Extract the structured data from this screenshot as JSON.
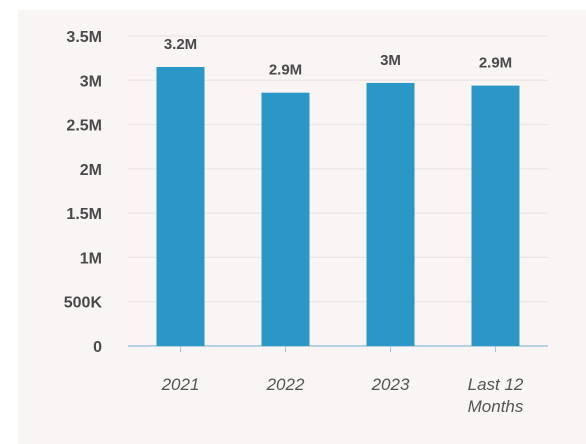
{
  "chart_data": {
    "type": "bar",
    "categories": [
      "2021",
      "2022",
      "2023",
      "Last 12 Months"
    ],
    "category_lines": [
      [
        "2021"
      ],
      [
        "2022"
      ],
      [
        "2023"
      ],
      [
        "Last 12",
        "Months"
      ]
    ],
    "values": [
      3150000,
      2860000,
      2970000,
      2940000
    ],
    "data_labels": [
      "3.2M",
      "2.9M",
      "3M",
      "2.9M"
    ],
    "ylim": [
      0,
      3500000
    ],
    "yticks": [
      0,
      500000,
      1000000,
      1500000,
      2000000,
      2500000,
      3000000,
      3500000
    ],
    "ytick_labels": [
      "0",
      "500K",
      "1M",
      "1.5M",
      "2M",
      "2.5M",
      "3M",
      "3.5M"
    ],
    "title": "",
    "xlabel": "",
    "ylabel": "",
    "grid": true,
    "legend": "none",
    "colors": {
      "bar": "#2b97c6",
      "grid": "#e9e4e2",
      "axis": "#9fc6dc",
      "panel": "#f8f5f4"
    }
  }
}
